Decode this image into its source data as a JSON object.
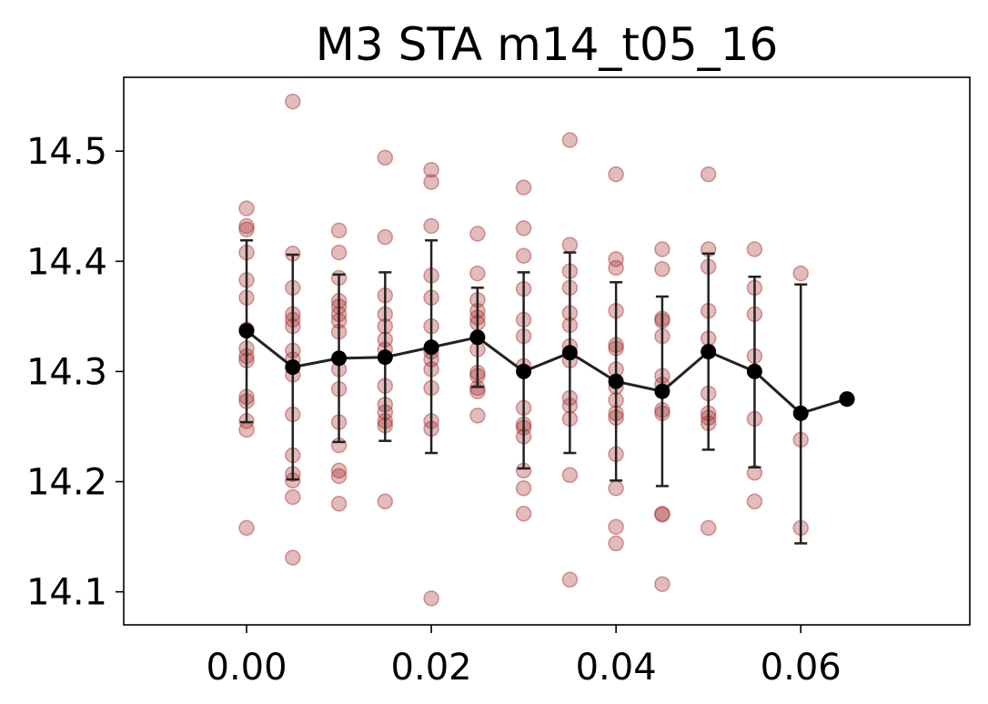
{
  "chart_data": {
    "type": "scatter",
    "title": "M3 STA m14_t05_16",
    "xlabel": "",
    "ylabel": "",
    "xlim": [
      -0.0133,
      0.0783
    ],
    "ylim": [
      14.07,
      14.567
    ],
    "xticks": [
      0.0,
      0.02,
      0.04,
      0.06
    ],
    "xtick_labels": [
      "0.00",
      "0.02",
      "0.04",
      "0.06"
    ],
    "yticks": [
      14.1,
      14.2,
      14.3,
      14.4,
      14.5
    ],
    "ytick_labels": [
      "14.1",
      "14.2",
      "14.3",
      "14.4",
      "14.5"
    ],
    "grid": false,
    "legend": "none",
    "colors": {
      "points": "#a52a2a",
      "mean": "#000000",
      "line": "#222222"
    },
    "series": [
      {
        "kind": "scatter",
        "points": [
          [
            0.0,
            14.448
          ],
          [
            0.0,
            14.432
          ],
          [
            0.0,
            14.429
          ],
          [
            0.0,
            14.408
          ],
          [
            0.0,
            14.383
          ],
          [
            0.0,
            14.367
          ],
          [
            0.0,
            14.338
          ],
          [
            0.0,
            14.321
          ],
          [
            0.0,
            14.314
          ],
          [
            0.0,
            14.31
          ],
          [
            0.0,
            14.277
          ],
          [
            0.0,
            14.273
          ],
          [
            0.0,
            14.255
          ],
          [
            0.0,
            14.247
          ],
          [
            0.0,
            14.158
          ],
          [
            0.005,
            14.545
          ],
          [
            0.005,
            14.407
          ],
          [
            0.005,
            14.376
          ],
          [
            0.005,
            14.352
          ],
          [
            0.005,
            14.347
          ],
          [
            0.005,
            14.341
          ],
          [
            0.005,
            14.319
          ],
          [
            0.005,
            14.311
          ],
          [
            0.005,
            14.297
          ],
          [
            0.005,
            14.261
          ],
          [
            0.005,
            14.224
          ],
          [
            0.005,
            14.207
          ],
          [
            0.005,
            14.201
          ],
          [
            0.005,
            14.186
          ],
          [
            0.005,
            14.131
          ],
          [
            0.01,
            14.428
          ],
          [
            0.01,
            14.408
          ],
          [
            0.01,
            14.385
          ],
          [
            0.01,
            14.364
          ],
          [
            0.01,
            14.359
          ],
          [
            0.01,
            14.352
          ],
          [
            0.01,
            14.346
          ],
          [
            0.01,
            14.336
          ],
          [
            0.01,
            14.302
          ],
          [
            0.01,
            14.284
          ],
          [
            0.01,
            14.254
          ],
          [
            0.01,
            14.233
          ],
          [
            0.01,
            14.21
          ],
          [
            0.01,
            14.205
          ],
          [
            0.01,
            14.18
          ],
          [
            0.015,
            14.494
          ],
          [
            0.015,
            14.422
          ],
          [
            0.015,
            14.369
          ],
          [
            0.015,
            14.352
          ],
          [
            0.015,
            14.341
          ],
          [
            0.015,
            14.329
          ],
          [
            0.015,
            14.32
          ],
          [
            0.015,
            14.287
          ],
          [
            0.015,
            14.27
          ],
          [
            0.015,
            14.263
          ],
          [
            0.015,
            14.255
          ],
          [
            0.015,
            14.251
          ],
          [
            0.015,
            14.182
          ],
          [
            0.02,
            14.483
          ],
          [
            0.02,
            14.472
          ],
          [
            0.02,
            14.432
          ],
          [
            0.02,
            14.387
          ],
          [
            0.02,
            14.367
          ],
          [
            0.02,
            14.341
          ],
          [
            0.02,
            14.318
          ],
          [
            0.02,
            14.311
          ],
          [
            0.02,
            14.302
          ],
          [
            0.02,
            14.285
          ],
          [
            0.02,
            14.255
          ],
          [
            0.02,
            14.248
          ],
          [
            0.02,
            14.094
          ],
          [
            0.025,
            14.425
          ],
          [
            0.025,
            14.389
          ],
          [
            0.025,
            14.365
          ],
          [
            0.025,
            14.355
          ],
          [
            0.025,
            14.349
          ],
          [
            0.025,
            14.344
          ],
          [
            0.025,
            14.32
          ],
          [
            0.025,
            14.299
          ],
          [
            0.025,
            14.296
          ],
          [
            0.025,
            14.285
          ],
          [
            0.025,
            14.282
          ],
          [
            0.025,
            14.26
          ],
          [
            0.03,
            14.467
          ],
          [
            0.03,
            14.43
          ],
          [
            0.03,
            14.405
          ],
          [
            0.03,
            14.375
          ],
          [
            0.03,
            14.347
          ],
          [
            0.03,
            14.332
          ],
          [
            0.03,
            14.305
          ],
          [
            0.03,
            14.267
          ],
          [
            0.03,
            14.252
          ],
          [
            0.03,
            14.249
          ],
          [
            0.03,
            14.241
          ],
          [
            0.03,
            14.21
          ],
          [
            0.03,
            14.194
          ],
          [
            0.03,
            14.171
          ],
          [
            0.035,
            14.51
          ],
          [
            0.035,
            14.415
          ],
          [
            0.035,
            14.391
          ],
          [
            0.035,
            14.376
          ],
          [
            0.035,
            14.353
          ],
          [
            0.035,
            14.342
          ],
          [
            0.035,
            14.323
          ],
          [
            0.035,
            14.31
          ],
          [
            0.035,
            14.276
          ],
          [
            0.035,
            14.269
          ],
          [
            0.035,
            14.257
          ],
          [
            0.035,
            14.206
          ],
          [
            0.035,
            14.111
          ],
          [
            0.04,
            14.479
          ],
          [
            0.04,
            14.402
          ],
          [
            0.04,
            14.394
          ],
          [
            0.04,
            14.355
          ],
          [
            0.04,
            14.324
          ],
          [
            0.04,
            14.321
          ],
          [
            0.04,
            14.302
          ],
          [
            0.04,
            14.286
          ],
          [
            0.04,
            14.274
          ],
          [
            0.04,
            14.262
          ],
          [
            0.04,
            14.258
          ],
          [
            0.04,
            14.225
          ],
          [
            0.04,
            14.194
          ],
          [
            0.04,
            14.159
          ],
          [
            0.04,
            14.144
          ],
          [
            0.045,
            14.411
          ],
          [
            0.045,
            14.393
          ],
          [
            0.045,
            14.348
          ],
          [
            0.045,
            14.346
          ],
          [
            0.045,
            14.332
          ],
          [
            0.045,
            14.296
          ],
          [
            0.045,
            14.288
          ],
          [
            0.045,
            14.265
          ],
          [
            0.045,
            14.262
          ],
          [
            0.045,
            14.171
          ],
          [
            0.045,
            14.17
          ],
          [
            0.045,
            14.107
          ],
          [
            0.05,
            14.479
          ],
          [
            0.05,
            14.411
          ],
          [
            0.05,
            14.395
          ],
          [
            0.05,
            14.355
          ],
          [
            0.05,
            14.33
          ],
          [
            0.05,
            14.28
          ],
          [
            0.05,
            14.262
          ],
          [
            0.05,
            14.258
          ],
          [
            0.05,
            14.253
          ],
          [
            0.05,
            14.158
          ],
          [
            0.055,
            14.411
          ],
          [
            0.055,
            14.376
          ],
          [
            0.055,
            14.352
          ],
          [
            0.055,
            14.314
          ],
          [
            0.055,
            14.257
          ],
          [
            0.055,
            14.208
          ],
          [
            0.055,
            14.182
          ],
          [
            0.06,
            14.389
          ],
          [
            0.06,
            14.238
          ],
          [
            0.06,
            14.158
          ],
          [
            0.065,
            14.275
          ]
        ]
      },
      {
        "kind": "errorbar-line",
        "points": [
          {
            "x": 0.0,
            "y": 14.337,
            "lower": 14.254,
            "upper": 14.419
          },
          {
            "x": 0.005,
            "y": 14.304,
            "lower": 14.202,
            "upper": 14.406
          },
          {
            "x": 0.01,
            "y": 14.312,
            "lower": 14.236,
            "upper": 14.388
          },
          {
            "x": 0.015,
            "y": 14.313,
            "lower": 14.237,
            "upper": 14.39
          },
          {
            "x": 0.02,
            "y": 14.322,
            "lower": 14.226,
            "upper": 14.419
          },
          {
            "x": 0.025,
            "y": 14.331,
            "lower": 14.286,
            "upper": 14.376
          },
          {
            "x": 0.03,
            "y": 14.3,
            "lower": 14.212,
            "upper": 14.39
          },
          {
            "x": 0.035,
            "y": 14.317,
            "lower": 14.226,
            "upper": 14.408
          },
          {
            "x": 0.04,
            "y": 14.291,
            "lower": 14.201,
            "upper": 14.381
          },
          {
            "x": 0.045,
            "y": 14.282,
            "lower": 14.196,
            "upper": 14.368
          },
          {
            "x": 0.05,
            "y": 14.318,
            "lower": 14.229,
            "upper": 14.407
          },
          {
            "x": 0.055,
            "y": 14.3,
            "lower": 14.213,
            "upper": 14.386
          },
          {
            "x": 0.06,
            "y": 14.262,
            "lower": 14.144,
            "upper": 14.379
          },
          {
            "x": 0.065,
            "y": 14.275,
            "lower": null,
            "upper": null
          }
        ]
      }
    ]
  }
}
